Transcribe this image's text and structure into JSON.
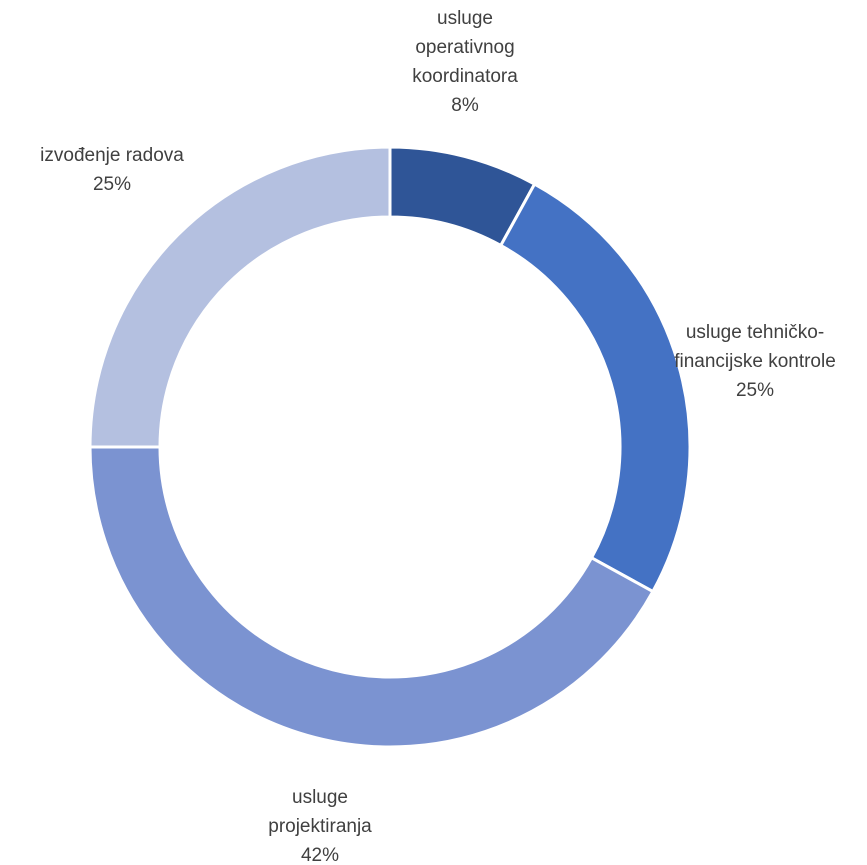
{
  "chart_data": {
    "type": "donut",
    "categories": [
      "usluge operativnog koordinatora",
      "usluge tehničko-financijske kontrole",
      "usluge projektiranja",
      "izvođenje radova"
    ],
    "values": [
      8,
      25,
      42,
      25
    ],
    "value_labels": [
      "8%",
      "25%",
      "42%",
      "25%"
    ],
    "colors": [
      "#2f5597",
      "#4472c4",
      "#7b93d1",
      "#b4c0e0"
    ]
  }
}
